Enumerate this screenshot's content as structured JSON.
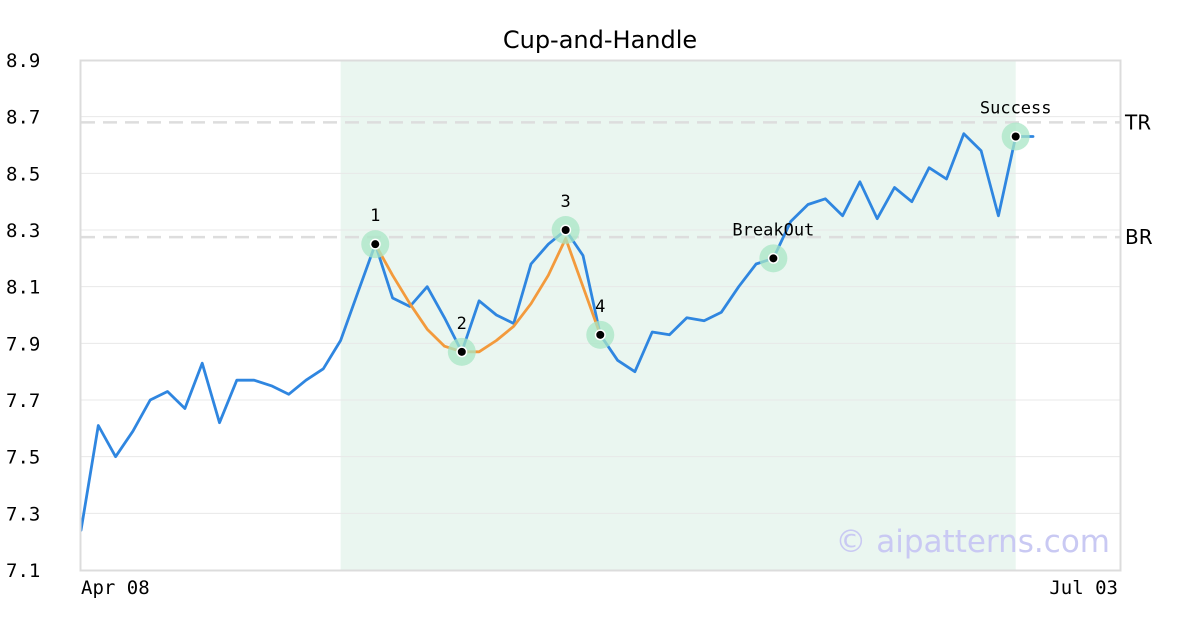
{
  "chart_data": {
    "type": "line",
    "title": "Cup-and-Handle",
    "xlabel": "",
    "ylabel": "",
    "ylim": [
      7.1,
      8.9
    ],
    "y_ticks": [
      "7.1",
      "7.3",
      "7.5",
      "7.7",
      "7.9",
      "8.1",
      "8.3",
      "8.5",
      "8.7",
      "8.9"
    ],
    "x_tick_labels": [
      {
        "index": 0,
        "label": "Apr 08"
      },
      {
        "index": 56,
        "label": "Jul 03"
      }
    ],
    "grid": "horizontal",
    "series": [
      {
        "color": "#2f86e0",
        "values": [
          7.24,
          7.61,
          7.5,
          7.59,
          7.7,
          7.73,
          7.67,
          7.83,
          7.62,
          7.77,
          7.77,
          7.75,
          7.72,
          7.77,
          7.81,
          7.91,
          8.08,
          8.25,
          8.06,
          8.03,
          8.1,
          7.99,
          7.87,
          8.05,
          8.0,
          7.97,
          8.18,
          8.25,
          8.3,
          8.21,
          7.93,
          7.84,
          7.8,
          7.94,
          7.93,
          7.99,
          7.98,
          8.01,
          8.1,
          8.18,
          8.2,
          8.33,
          8.39,
          8.41,
          8.35,
          8.47,
          8.34,
          8.45,
          8.4,
          8.52,
          8.48,
          8.64,
          8.58,
          8.35,
          8.63,
          8.63
        ]
      },
      {
        "color": "#f39a3c",
        "x": [
          17,
          18,
          19,
          20,
          21,
          22,
          23,
          24,
          25,
          26,
          27,
          28,
          29,
          30
        ],
        "values": [
          8.25,
          8.14,
          8.04,
          7.95,
          7.89,
          7.87,
          7.87,
          7.91,
          7.96,
          8.04,
          8.14,
          8.27,
          8.1,
          7.93
        ]
      }
    ],
    "reference_lines": [
      {
        "label": "TR",
        "value": 8.68
      },
      {
        "label": "BR",
        "value": 8.275
      }
    ],
    "highlight_range": {
      "from_index": 15,
      "to_index": 54,
      "color": "#eaf6f0"
    },
    "points": [
      {
        "label": "1",
        "index": 17,
        "value": 8.25
      },
      {
        "label": "2",
        "index": 22,
        "value": 7.87
      },
      {
        "label": "3",
        "index": 28,
        "value": 8.3
      },
      {
        "label": "4",
        "index": 30,
        "value": 7.93
      },
      {
        "label": "BreakOut",
        "index": 40,
        "value": 8.2
      },
      {
        "label": "Success",
        "index": 54,
        "value": 8.63
      }
    ],
    "watermark": "© aipatterns.com"
  }
}
